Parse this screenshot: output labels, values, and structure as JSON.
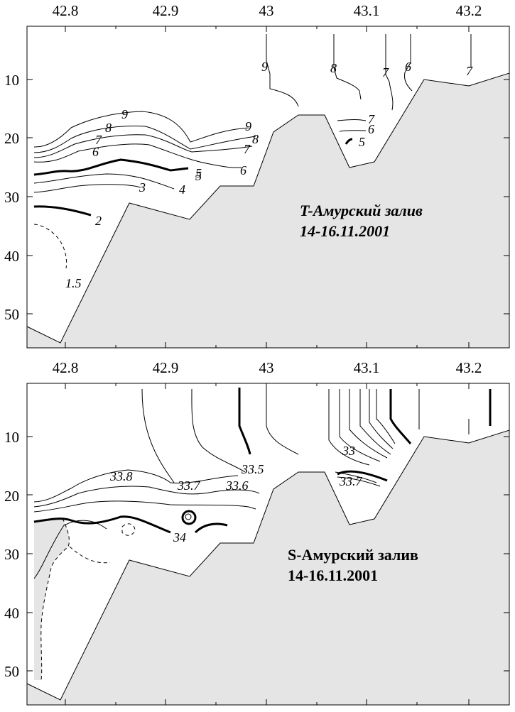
{
  "chart_data": [
    {
      "type": "contour",
      "title_line1": "T-Амурский залив",
      "title_line2": "14-16.11.2001",
      "x_ticks": [
        "42.8",
        "42.9",
        "43",
        "43.1",
        "43.2"
      ],
      "y_ticks": [
        "10",
        "20",
        "30",
        "40",
        "50"
      ],
      "contour_labels": [
        "9",
        "8",
        "7",
        "6",
        "5",
        "4",
        "3",
        "2",
        "1.5",
        "9",
        "8",
        "7",
        "6",
        "5",
        "9",
        "8",
        "7",
        "6",
        "7",
        "6",
        "5",
        "7"
      ],
      "fill_color": "#e5e5e5"
    },
    {
      "type": "contour",
      "title_line1": "S-Амурский залив",
      "title_line2": "14-16.11.2001",
      "x_ticks": [
        "42.8",
        "42.9",
        "43",
        "43.1",
        "43.2"
      ],
      "y_ticks": [
        "10",
        "20",
        "30",
        "40",
        "50"
      ],
      "contour_labels": [
        "33.8",
        "33.7",
        "33.6",
        "33.5",
        "34",
        "33",
        "33.7"
      ],
      "fill_color": "#e5e5e5"
    }
  ]
}
